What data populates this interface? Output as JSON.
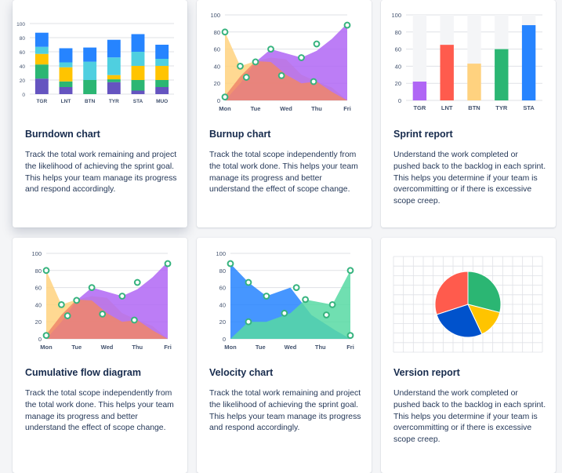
{
  "cards": [
    {
      "id": "burndown",
      "title": "Burndown chart",
      "description": "Track the total work remaining and project the likelihood of achieving the sprint goal. This helps your team manage its progress and respond accordingly."
    },
    {
      "id": "burnup",
      "title": "Burnup chart",
      "description": "Track the total scope independently from the total work done. This helps your team manage its progress and better understand the effect of scope change."
    },
    {
      "id": "sprint",
      "title": "Sprint report",
      "description": "Understand the work completed or pushed back to the backlog in each sprint. This helps you determine if your team is overcommitting or if there is excessive scope creep."
    },
    {
      "id": "cfd",
      "title": "Cumulative flow diagram",
      "description": "Track the total scope independently from the total work done. This helps your team manage its progress and better understand the effect of scope change."
    },
    {
      "id": "velocity",
      "title": "Velocity chart",
      "description": "Track the total work remaining and project the likelihood of achieving the sprint goal. This helps your team manage its progress and respond accordingly."
    },
    {
      "id": "version",
      "title": "Version report",
      "description": "Understand the work completed or pushed back to the backlog in each sprint. This helps you determine if your team is overcommitting or if there is excessive scope creep."
    }
  ],
  "colors": {
    "purple": "#6554c0",
    "violet": "#b066f5",
    "blue": "#2684ff",
    "darkblue": "#0052cc",
    "cyan": "#4fcfe0",
    "green": "#2bb673",
    "yellow": "#ffc400",
    "orange": "#ffd27f",
    "red": "#ff5b4d",
    "salmon": "#f0866a",
    "teal": "#57d9a3"
  },
  "chart_data": [
    {
      "id": "burndown",
      "type": "bar",
      "stacked": true,
      "categories": [
        "TGR",
        "LNT",
        "BTN",
        "TYR",
        "STA",
        "MUO"
      ],
      "ylim": [
        0,
        100
      ],
      "yticks": [
        "0",
        "20",
        "40",
        "60",
        "80",
        "100"
      ],
      "series": [
        {
          "color": "#6554c0",
          "values": [
            22,
            10,
            0,
            17,
            5,
            10
          ]
        },
        {
          "color": "#2bb673",
          "values": [
            20,
            8,
            20,
            4,
            15,
            10
          ]
        },
        {
          "color": "#ffc400",
          "values": [
            15,
            20,
            0,
            6,
            20,
            20
          ]
        },
        {
          "color": "#4fcfe0",
          "values": [
            10,
            7,
            26,
            25,
            20,
            10
          ]
        },
        {
          "color": "#2684ff",
          "values": [
            20,
            20,
            20,
            25,
            25,
            20
          ]
        }
      ]
    },
    {
      "id": "burnup",
      "type": "area",
      "categories": [
        "Mon",
        "Tue",
        "Wed",
        "Thu",
        "Fri"
      ],
      "ylim": [
        0,
        100
      ],
      "yticks": [
        "0",
        "20",
        "40",
        "60",
        "80",
        "100"
      ],
      "series": [
        {
          "color": "#ffd27f",
          "x": [
            0,
            0.5,
            1,
            1.5,
            2,
            2.5,
            3,
            3.5,
            4
          ],
          "values": [
            80,
            40,
            46,
            50,
            48,
            30,
            22,
            15,
            0
          ]
        },
        {
          "color": "#b066f5",
          "x": [
            0,
            0.5,
            1,
            1.5,
            2,
            2.5,
            3,
            3.5,
            4
          ],
          "values": [
            0,
            20,
            45,
            60,
            55,
            50,
            58,
            72,
            90
          ]
        },
        {
          "color": "#f0866a",
          "x": [
            0,
            0.5,
            1,
            1.5,
            2,
            2.5,
            3,
            3.5,
            4
          ],
          "values": [
            5,
            28,
            46,
            45,
            30,
            20,
            22,
            10,
            0
          ]
        }
      ],
      "markers": [
        {
          "x": 0,
          "y": 80
        },
        {
          "x": 0.5,
          "y": 40
        },
        {
          "x": 1,
          "y": 45
        },
        {
          "x": 1.5,
          "y": 60
        },
        {
          "x": 2.5,
          "y": 50
        },
        {
          "x": 3,
          "y": 66
        },
        {
          "x": 4,
          "y": 88
        },
        {
          "x": 0,
          "y": 4
        },
        {
          "x": 0.7,
          "y": 27
        },
        {
          "x": 1.85,
          "y": 29
        },
        {
          "x": 2.9,
          "y": 22
        }
      ]
    },
    {
      "id": "sprint",
      "type": "bar",
      "categories": [
        "TGR",
        "LNT",
        "BTN",
        "TYR",
        "STA"
      ],
      "ylim": [
        0,
        100
      ],
      "yticks": [
        "0",
        "20",
        "40",
        "60",
        "80",
        "100"
      ],
      "values": [
        22,
        65,
        43,
        60,
        88
      ],
      "colors": [
        "#b066f5",
        "#ff5b4d",
        "#ffd27f",
        "#2bb673",
        "#2684ff"
      ]
    },
    {
      "id": "cfd",
      "type": "area",
      "categories": [
        "Mon",
        "Tue",
        "Wed",
        "Thu",
        "Fri"
      ],
      "ylim": [
        0,
        100
      ],
      "yticks": [
        "0",
        "20",
        "40",
        "60",
        "80",
        "100"
      ],
      "series": [
        {
          "color": "#ffd27f",
          "x": [
            0,
            0.5,
            1,
            1.5,
            2,
            2.5,
            3,
            3.5,
            4
          ],
          "values": [
            80,
            40,
            46,
            50,
            48,
            30,
            22,
            15,
            0
          ]
        },
        {
          "color": "#b066f5",
          "x": [
            0,
            0.5,
            1,
            1.5,
            2,
            2.5,
            3,
            3.5,
            4
          ],
          "values": [
            0,
            20,
            45,
            60,
            55,
            50,
            58,
            72,
            90
          ]
        },
        {
          "color": "#f0866a",
          "x": [
            0,
            0.5,
            1,
            1.5,
            2,
            2.5,
            3,
            3.5,
            4
          ],
          "values": [
            5,
            28,
            46,
            45,
            30,
            20,
            22,
            10,
            0
          ]
        }
      ],
      "markers": [
        {
          "x": 0,
          "y": 80
        },
        {
          "x": 0.5,
          "y": 40
        },
        {
          "x": 1,
          "y": 45
        },
        {
          "x": 1.5,
          "y": 60
        },
        {
          "x": 2.5,
          "y": 50
        },
        {
          "x": 3,
          "y": 66
        },
        {
          "x": 4,
          "y": 88
        },
        {
          "x": 0,
          "y": 4
        },
        {
          "x": 0.7,
          "y": 27
        },
        {
          "x": 1.85,
          "y": 29
        },
        {
          "x": 2.9,
          "y": 22
        }
      ]
    },
    {
      "id": "velocity",
      "type": "area",
      "categories": [
        "Mon",
        "Tue",
        "Wed",
        "Thu",
        "Fri"
      ],
      "ylim": [
        0,
        100
      ],
      "yticks": [
        "0",
        "20",
        "40",
        "60",
        "80",
        "100"
      ],
      "series": [
        {
          "color": "#2684ff",
          "x": [
            0,
            0.6,
            1.2,
            2,
            2.7,
            3.5,
            4
          ],
          "values": [
            88,
            66,
            50,
            60,
            28,
            10,
            0
          ]
        },
        {
          "color": "#57d9a3",
          "x": [
            0,
            0.6,
            1.2,
            2,
            2.5,
            3.4,
            4
          ],
          "values": [
            0,
            20,
            20,
            30,
            46,
            40,
            80
          ]
        }
      ],
      "markers": [
        {
          "x": 0,
          "y": 88
        },
        {
          "x": 0.6,
          "y": 66
        },
        {
          "x": 1.2,
          "y": 50
        },
        {
          "x": 2.2,
          "y": 60
        },
        {
          "x": 3.2,
          "y": 28
        },
        {
          "x": 4,
          "y": 4
        },
        {
          "x": 0.6,
          "y": 20
        },
        {
          "x": 1.8,
          "y": 30
        },
        {
          "x": 2.5,
          "y": 46
        },
        {
          "x": 3.4,
          "y": 40
        },
        {
          "x": 4,
          "y": 80
        }
      ]
    },
    {
      "id": "version",
      "type": "pie",
      "values": [
        29,
        14,
        27,
        30
      ],
      "colors": [
        "#2bb673",
        "#ffc400",
        "#0052cc",
        "#ff5b4d"
      ]
    }
  ]
}
